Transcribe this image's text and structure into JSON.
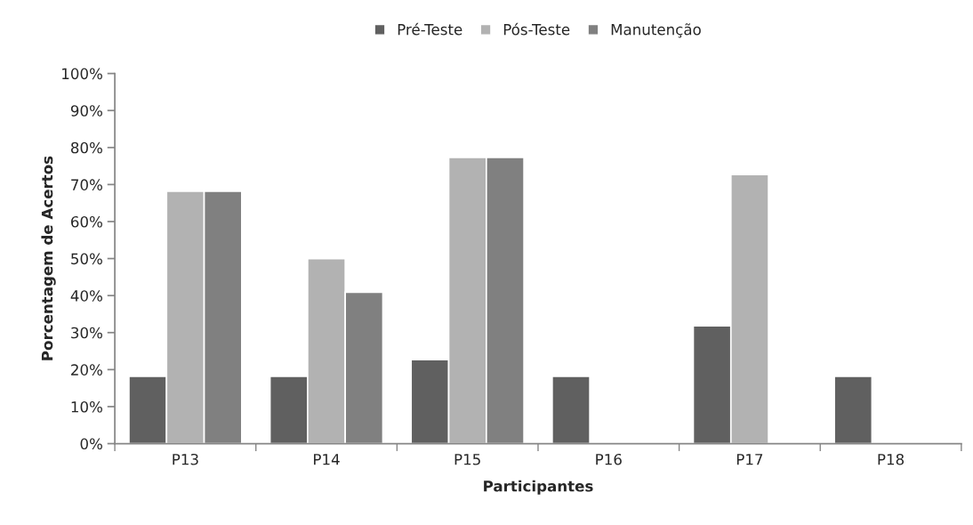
{
  "chart_data": {
    "type": "bar",
    "xlabel": "Participantes",
    "ylabel": "Porcentagem de Acertos",
    "categories": [
      "P13",
      "P14",
      "P15",
      "P16",
      "P17",
      "P18"
    ],
    "series": [
      {
        "name": "Pré-Teste",
        "color": "#606060",
        "values": [
          18.2,
          18.2,
          22.7,
          18.2,
          31.8,
          18.2
        ]
      },
      {
        "name": "Pós-Teste",
        "color": "#b2b2b2",
        "values": [
          68.2,
          50,
          77.3,
          null,
          72.7,
          null
        ]
      },
      {
        "name": "Manutenção",
        "color": "#808080",
        "values": [
          68.2,
          40.9,
          77.3,
          null,
          null,
          null
        ]
      }
    ],
    "ylim": [
      0,
      100
    ],
    "yticks": [
      {
        "value": 0,
        "label": "0%"
      },
      {
        "value": 10,
        "label": "10%"
      },
      {
        "value": 20,
        "label": "20%"
      },
      {
        "value": 30,
        "label": "30%"
      },
      {
        "value": 40,
        "label": "40%"
      },
      {
        "value": 50,
        "label": "50%"
      },
      {
        "value": 60,
        "label": "60%"
      },
      {
        "value": 70,
        "label": "70%"
      },
      {
        "value": 80,
        "label": "80%"
      },
      {
        "value": 90,
        "label": "90%"
      },
      {
        "value": 100,
        "label": "100%"
      }
    ],
    "grid": false,
    "legend": "top"
  }
}
